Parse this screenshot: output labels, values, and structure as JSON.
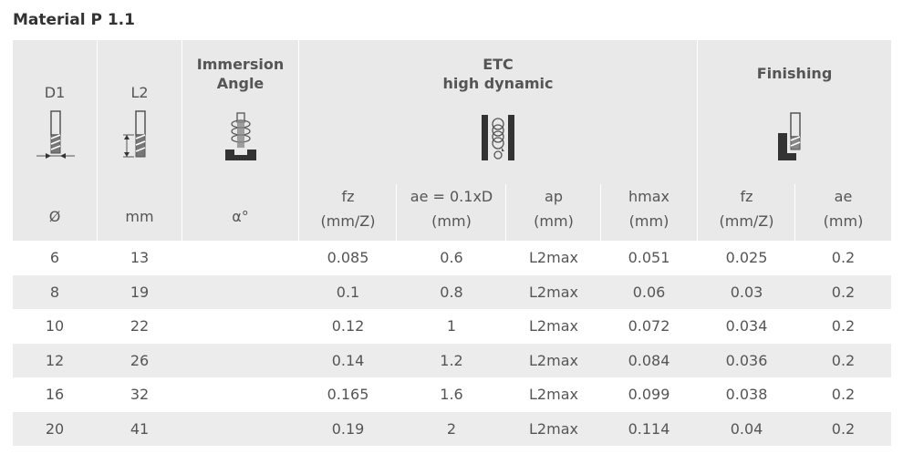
{
  "title": "Material P 1.1",
  "header": {
    "d1": {
      "name": "D1",
      "unit": "Ø"
    },
    "l2": {
      "name": "L2",
      "unit": "mm"
    },
    "immersion": {
      "title_line1": "Immersion",
      "title_line2": "Angle",
      "unit": "α°"
    },
    "etc": {
      "title_line1": "ETC",
      "title_line2": "high dynamic",
      "cols": [
        {
          "name": "fz",
          "unit": "(mm/Z)"
        },
        {
          "name": "ae = 0.1xD",
          "unit": "(mm)"
        },
        {
          "name": "ap",
          "unit": "(mm)"
        },
        {
          "name": "hmax",
          "unit": "(mm)"
        }
      ]
    },
    "finishing": {
      "title": "Finishing",
      "cols": [
        {
          "name": "fz",
          "unit": "(mm/Z)"
        },
        {
          "name": "ae",
          "unit": "(mm)"
        }
      ]
    }
  },
  "rows": [
    {
      "d1": "6",
      "l2": "13",
      "fz": "0.085",
      "ae": "0.6",
      "ap": "L2max",
      "hmax": "0.051",
      "ffz": "0.025",
      "fae": "0.2"
    },
    {
      "d1": "8",
      "l2": "19",
      "fz": "0.1",
      "ae": "0.8",
      "ap": "L2max",
      "hmax": "0.06",
      "ffz": "0.03",
      "fae": "0.2"
    },
    {
      "d1": "10",
      "l2": "22",
      "fz": "0.12",
      "ae": "1",
      "ap": "L2max",
      "hmax": "0.072",
      "ffz": "0.034",
      "fae": "0.2"
    },
    {
      "d1": "12",
      "l2": "26",
      "fz": "0.14",
      "ae": "1.2",
      "ap": "L2max",
      "hmax": "0.084",
      "ffz": "0.036",
      "fae": "0.2"
    },
    {
      "d1": "16",
      "l2": "32",
      "fz": "0.165",
      "ae": "1.6",
      "ap": "L2max",
      "hmax": "0.099",
      "ffz": "0.038",
      "fae": "0.2"
    },
    {
      "d1": "20",
      "l2": "41",
      "fz": "0.19",
      "ae": "2",
      "ap": "L2max",
      "hmax": "0.114",
      "ffz": "0.04",
      "fae": "0.2"
    }
  ],
  "icons": {
    "d1": "end-mill-diameter-icon",
    "l2": "end-mill-length-icon",
    "immersion": "helical-immersion-icon",
    "etc": "trochoidal-slot-icon",
    "finishing": "side-finishing-icon"
  },
  "colors": {
    "header_bg": "#e9e9ea",
    "row_shade": "#ececed",
    "text": "#555555",
    "dark": "#333333"
  }
}
